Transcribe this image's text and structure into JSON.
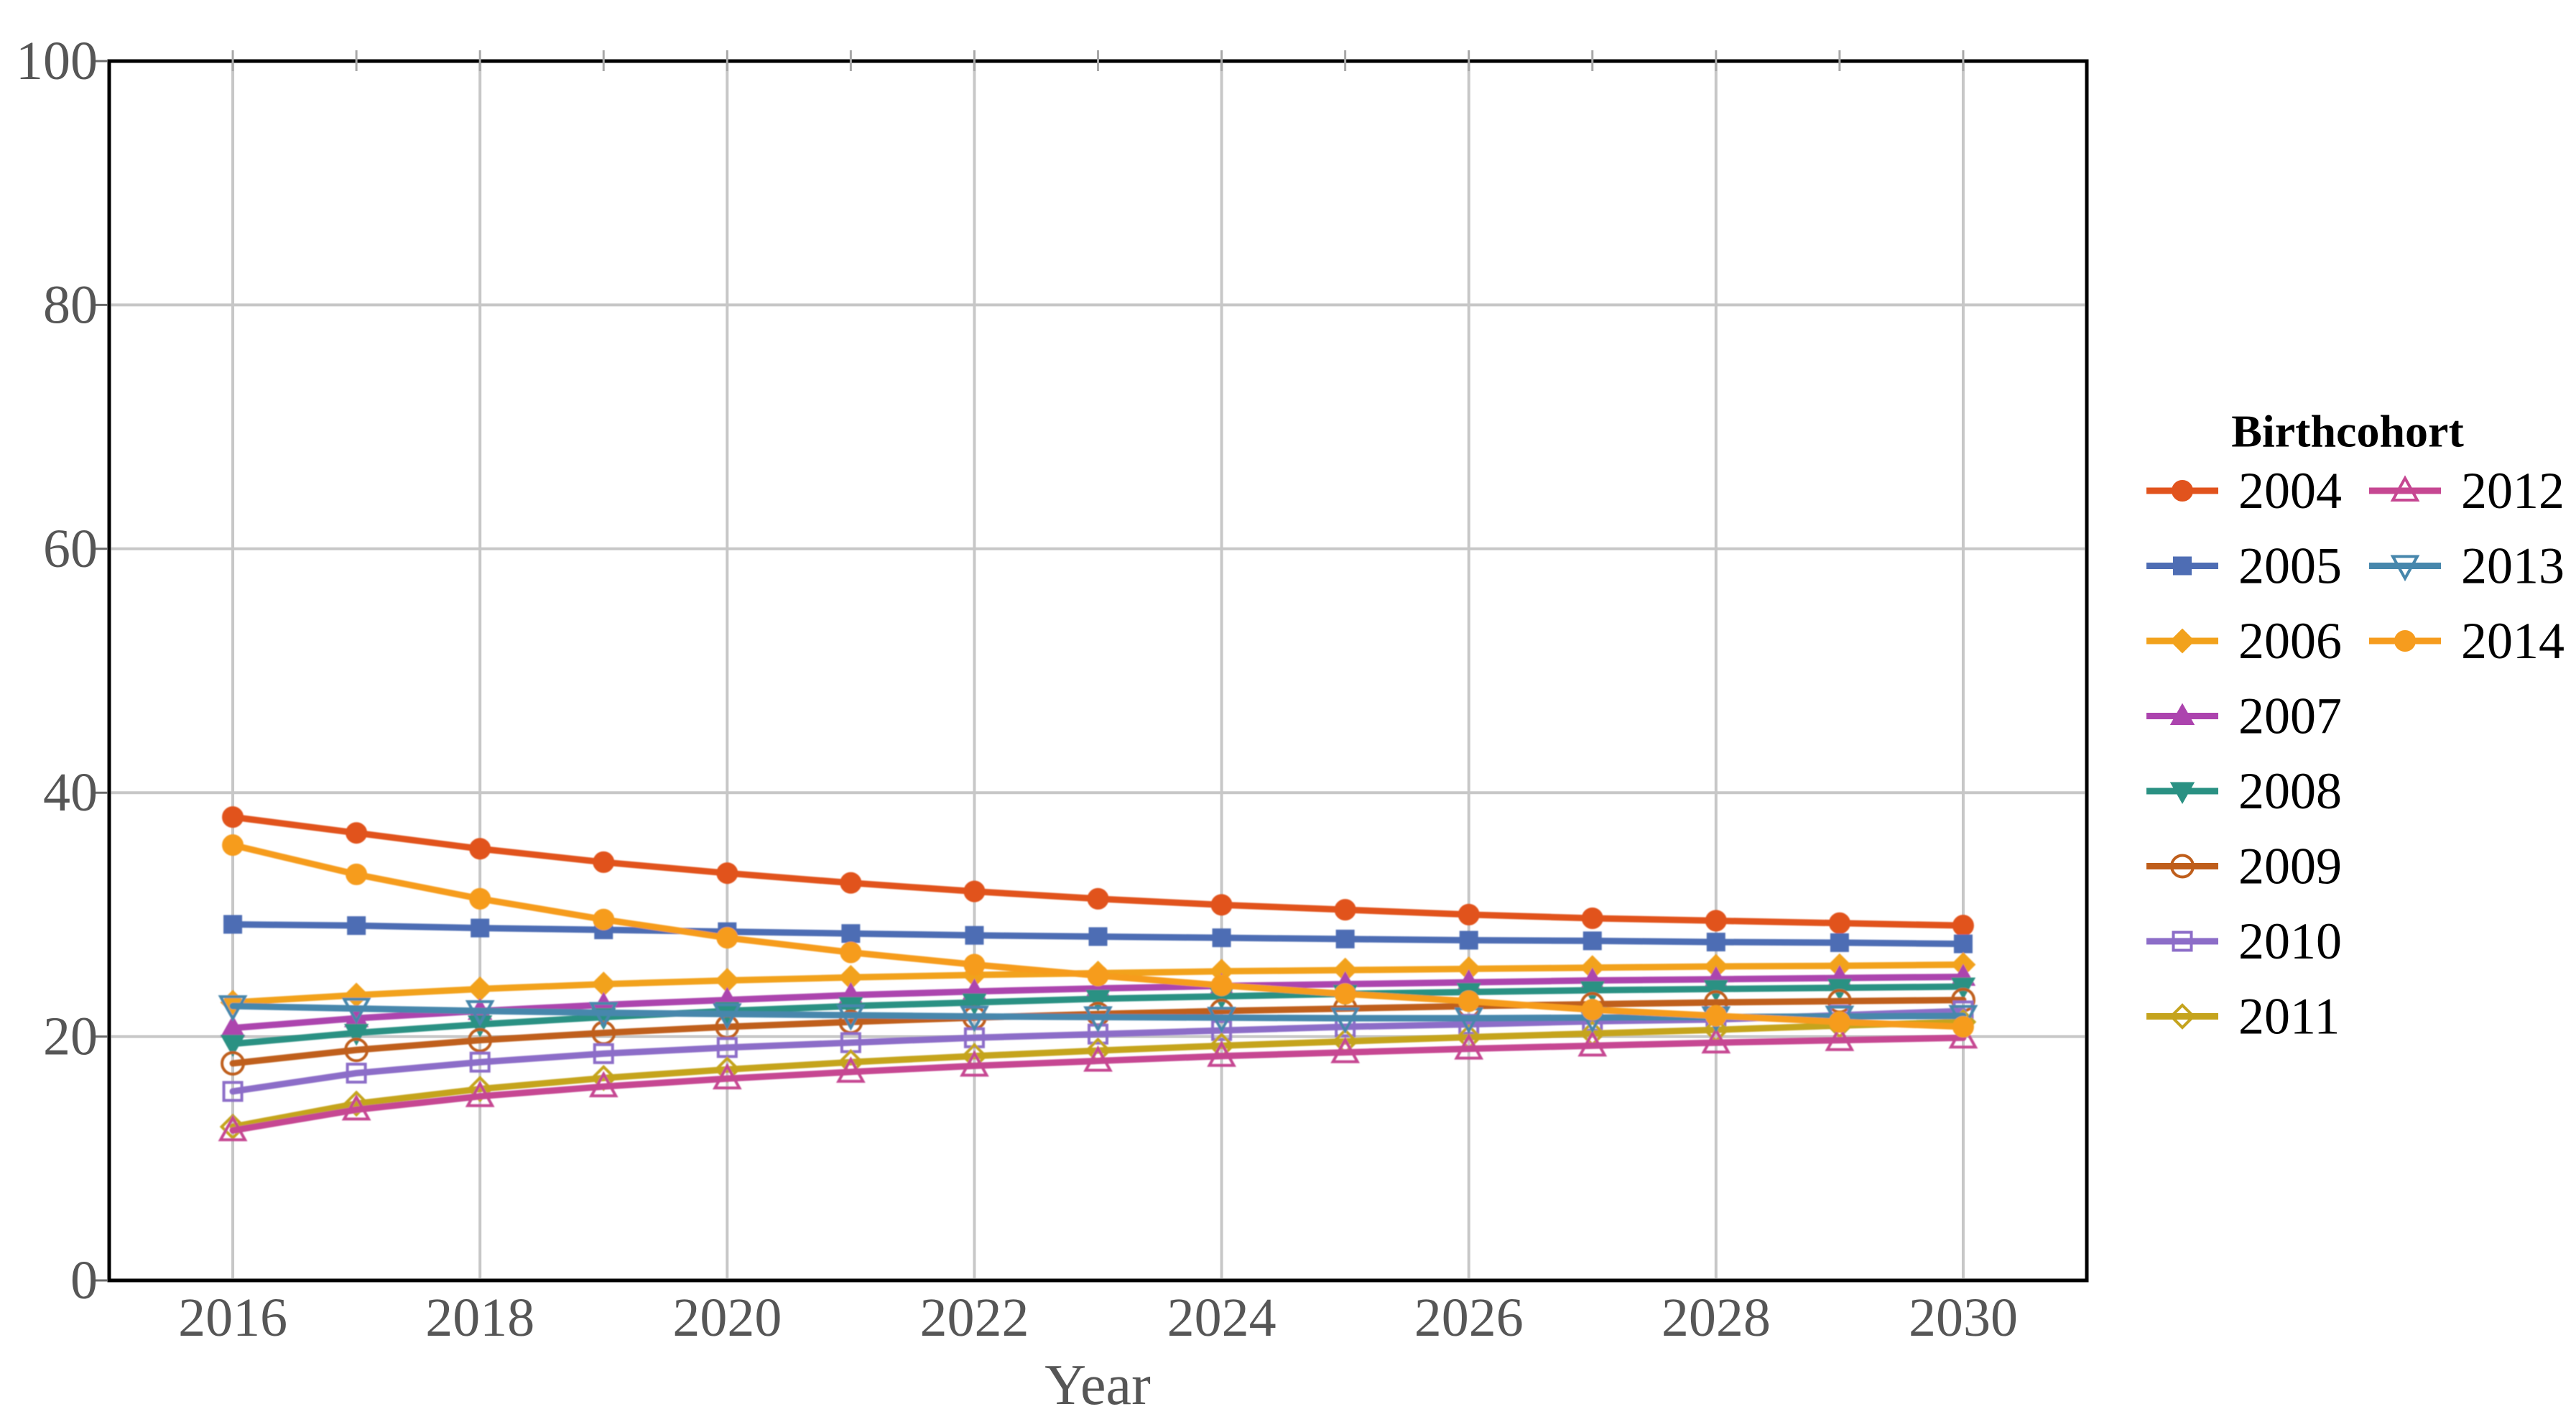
{
  "chart_data": {
    "type": "line",
    "title": "",
    "xlabel": "Year",
    "ylabel": "",
    "legend_title": "Birthcohort",
    "x": [
      2016,
      2017,
      2018,
      2019,
      2020,
      2021,
      2022,
      2023,
      2024,
      2025,
      2026,
      2027,
      2028,
      2029,
      2030
    ],
    "xlim": [
      2015,
      2031
    ],
    "ylim": [
      0,
      100
    ],
    "yticks": [
      0,
      20,
      40,
      60,
      80,
      100
    ],
    "xticks_labeled": [
      2016,
      2018,
      2020,
      2022,
      2024,
      2026,
      2028,
      2030
    ],
    "grid": true,
    "legend_position": "right-of-plot",
    "series": [
      {
        "name": "2004",
        "color": "#e1531d",
        "marker": "circle",
        "filled": true,
        "values": [
          38.0,
          36.7,
          35.4,
          34.3,
          33.4,
          32.6,
          31.9,
          31.3,
          30.8,
          30.4,
          30.0,
          29.7,
          29.5,
          29.3,
          29.1
        ]
      },
      {
        "name": "2005",
        "color": "#4e6db4",
        "marker": "square",
        "filled": true,
        "values": [
          29.2,
          29.1,
          28.9,
          28.75,
          28.6,
          28.45,
          28.3,
          28.2,
          28.1,
          28.0,
          27.9,
          27.85,
          27.75,
          27.7,
          27.6
        ]
      },
      {
        "name": "2006",
        "color": "#f2a21c",
        "marker": "diamond",
        "filled": true,
        "values": [
          22.8,
          23.4,
          23.9,
          24.3,
          24.6,
          24.85,
          25.05,
          25.2,
          25.35,
          25.45,
          25.55,
          25.65,
          25.75,
          25.8,
          25.9
        ]
      },
      {
        "name": "2007",
        "color": "#ac44ae",
        "marker": "triangle-up",
        "filled": true,
        "values": [
          20.7,
          21.5,
          22.1,
          22.6,
          23.0,
          23.4,
          23.7,
          23.95,
          24.15,
          24.3,
          24.45,
          24.6,
          24.7,
          24.8,
          24.9
        ]
      },
      {
        "name": "2008",
        "color": "#2a9183",
        "marker": "triangle-down",
        "filled": true,
        "values": [
          19.4,
          20.3,
          21.0,
          21.6,
          22.1,
          22.5,
          22.8,
          23.1,
          23.3,
          23.5,
          23.65,
          23.8,
          23.9,
          24.0,
          24.1
        ]
      },
      {
        "name": "2009",
        "color": "#bf5e1b",
        "marker": "circle",
        "filled": false,
        "values": [
          17.8,
          18.9,
          19.7,
          20.3,
          20.8,
          21.2,
          21.55,
          21.85,
          22.1,
          22.3,
          22.5,
          22.65,
          22.8,
          22.9,
          23.0
        ]
      },
      {
        "name": "2010",
        "color": "#8c6dc8",
        "marker": "square",
        "filled": false,
        "values": [
          15.5,
          17.0,
          17.9,
          18.6,
          19.1,
          19.5,
          19.9,
          20.2,
          20.5,
          20.8,
          21.0,
          21.25,
          21.4,
          21.75,
          22.1
        ]
      },
      {
        "name": "2011",
        "color": "#c5a41e",
        "marker": "diamond",
        "filled": false,
        "values": [
          12.6,
          14.5,
          15.7,
          16.6,
          17.3,
          17.9,
          18.4,
          18.85,
          19.25,
          19.6,
          19.95,
          20.25,
          20.55,
          20.9,
          21.2
        ]
      },
      {
        "name": "2012",
        "color": "#c64792",
        "marker": "triangle-up",
        "filled": false,
        "values": [
          12.3,
          14.0,
          15.1,
          15.9,
          16.55,
          17.1,
          17.6,
          18.0,
          18.4,
          18.7,
          19.0,
          19.25,
          19.5,
          19.7,
          19.9
        ]
      },
      {
        "name": "2013",
        "color": "#4787ac",
        "marker": "triangle-down",
        "filled": false,
        "values": [
          22.5,
          22.3,
          22.1,
          21.95,
          21.85,
          21.75,
          21.65,
          21.6,
          21.55,
          21.5,
          21.5,
          21.55,
          21.6,
          21.65,
          21.7
        ]
      },
      {
        "name": "2014",
        "color": "#f69c1e",
        "marker": "circle",
        "filled": true,
        "values": [
          35.7,
          33.3,
          31.3,
          29.6,
          28.1,
          26.9,
          25.9,
          25.0,
          24.2,
          23.5,
          22.9,
          22.2,
          21.7,
          21.2,
          20.8
        ]
      }
    ],
    "legend_columns": [
      [
        "2004",
        "2005",
        "2006",
        "2007",
        "2008",
        "2009",
        "2010",
        "2011"
      ],
      [
        "2012",
        "2013",
        "2014"
      ]
    ],
    "colors": {
      "background": "#ffffff",
      "grid": "#c7c7c7",
      "frame": "#000000",
      "tick_label": "#565656",
      "axis_minor_tick": "#a8a8a8",
      "legend_text": "#000000"
    }
  }
}
